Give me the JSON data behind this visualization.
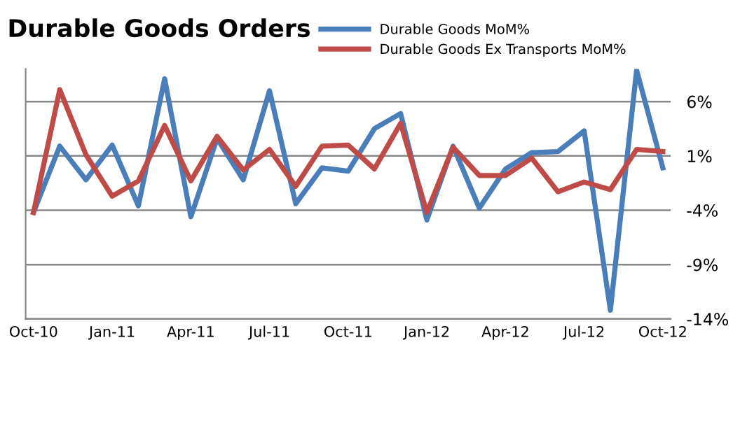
{
  "chart_data": {
    "type": "line",
    "title": "Durable Goods Orders",
    "categories": [
      "Oct-10",
      null,
      null,
      "Jan-11",
      null,
      null,
      "Apr-11",
      null,
      null,
      "Jul-11",
      null,
      null,
      "Oct-11",
      null,
      null,
      "Jan-12",
      null,
      null,
      "Apr-12",
      null,
      null,
      "Jul-12",
      null,
      null,
      "Oct-12"
    ],
    "series": [
      {
        "name": "Durable Goods MoM%",
        "color": "#4a7ebb",
        "values": [
          -4.2,
          1.9,
          -1.2,
          2.0,
          -3.6,
          8.1,
          -4.6,
          2.6,
          -1.2,
          7.0,
          -3.4,
          -0.1,
          -0.4,
          3.5,
          4.9,
          -4.9,
          1.9,
          -3.8,
          -0.2,
          1.3,
          1.4,
          3.3,
          -13.2,
          8.9,
          -0.1
        ]
      },
      {
        "name": "Durable Goods Ex Transports MoM%",
        "color": "#be4b48",
        "values": [
          -4.2,
          7.1,
          1.1,
          -2.7,
          -1.3,
          3.8,
          -1.3,
          2.8,
          -0.3,
          1.6,
          -1.8,
          1.9,
          2.0,
          -0.2,
          4.0,
          -4.2,
          1.8,
          -0.8,
          -0.8,
          0.8,
          -2.3,
          -1.4,
          -2.1,
          1.6,
          1.4
        ]
      }
    ],
    "ylim": [
      -14,
      9
    ],
    "yticks": [
      {
        "value": -14,
        "label": "-14%"
      },
      {
        "value": -9,
        "label": "-9%"
      },
      {
        "value": -4,
        "label": "-4%"
      },
      {
        "value": 1,
        "label": "1%"
      },
      {
        "value": 6,
        "label": "6%"
      }
    ],
    "grid": "y",
    "legend": "top right",
    "marker": "none",
    "line_style": "solid"
  }
}
